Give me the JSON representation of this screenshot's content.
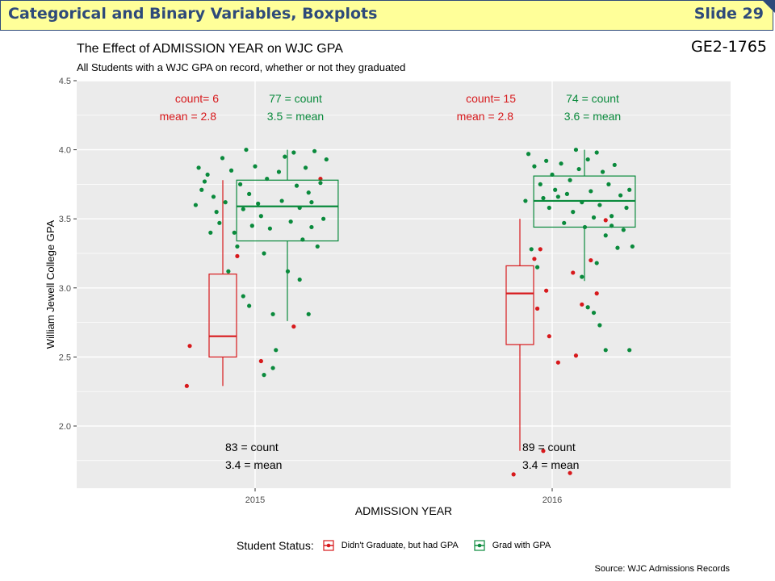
{
  "header": {
    "title": "Categorical and Binary Variables, Boxplots",
    "slide": "Slide 29"
  },
  "code": "GE2-1765",
  "source": "Source: WJC Admissions Records",
  "colors": {
    "header_bg": "#ffff99",
    "header_text": "#2e4a7a",
    "panel_bg": "#ebebeb",
    "didnt_graduate": "#d7191c",
    "grad": "#0a8a3c"
  },
  "chart_data": {
    "type": "boxplot",
    "title": "The Effect of ADMISSION YEAR on WJC GPA",
    "subtitle": "All Students with a WJC GPA on record, whether or not they graduated",
    "xlabel": "ADMISSION YEAR",
    "ylabel": "William Jewell College GPA",
    "ylim": [
      1.55,
      4.5
    ],
    "y_ticks": [
      "2.0",
      "2.5",
      "3.0",
      "3.5",
      "4.0",
      "4.5"
    ],
    "x_categories": [
      "2015",
      "2016"
    ],
    "grid": true,
    "legend": {
      "title": "Student Status:",
      "placement": "bottom",
      "entries": [
        "Didn't Graduate, but had GPA",
        "Grad with GPA"
      ]
    },
    "groups": [
      {
        "year": "2015",
        "total_annotation": [
          "83 = count",
          "3.4 = mean"
        ],
        "series": [
          {
            "name": "Didn't Graduate, but had GPA",
            "annotation": [
              "count= 6",
              "mean = 2.8"
            ],
            "box": {
              "min": 2.29,
              "q1": 2.5,
              "median": 2.65,
              "q3": 3.1,
              "max": 3.78
            },
            "points": [
              [
                -0.23,
                2.29
              ],
              [
                -0.22,
                2.58
              ],
              [
                -0.06,
                3.23
              ],
              [
                0.02,
                2.47
              ],
              [
                0.13,
                2.72
              ],
              [
                0.22,
                3.79
              ]
            ]
          },
          {
            "name": "Grad with GPA",
            "annotation": [
              "77 = count",
              "3.5 = mean"
            ],
            "box": {
              "min": 2.76,
              "q1": 3.34,
              "median": 3.59,
              "q3": 3.78,
              "max": 4.0
            },
            "points": [
              [
                -0.18,
                3.71
              ],
              [
                -0.17,
                3.77
              ],
              [
                -0.16,
                3.82
              ],
              [
                -0.14,
                3.66
              ],
              [
                -0.13,
                3.55
              ],
              [
                -0.12,
                3.47
              ],
              [
                -0.11,
                3.94
              ],
              [
                -0.1,
                3.62
              ],
              [
                -0.09,
                3.12
              ],
              [
                -0.08,
                3.85
              ],
              [
                -0.07,
                3.4
              ],
              [
                -0.06,
                3.3
              ],
              [
                -0.05,
                3.75
              ],
              [
                -0.04,
                3.57
              ],
              [
                -0.03,
                4.0
              ],
              [
                -0.02,
                3.68
              ],
              [
                -0.01,
                3.45
              ],
              [
                0.0,
                3.88
              ],
              [
                0.01,
                3.61
              ],
              [
                0.02,
                3.52
              ],
              [
                0.03,
                3.25
              ],
              [
                0.04,
                3.79
              ],
              [
                0.05,
                3.43
              ],
              [
                0.06,
                2.42
              ],
              [
                0.07,
                2.55
              ],
              [
                0.08,
                3.84
              ],
              [
                0.09,
                3.63
              ],
              [
                0.1,
                3.95
              ],
              [
                0.11,
                3.12
              ],
              [
                0.12,
                3.48
              ],
              [
                0.13,
                3.98
              ],
              [
                0.14,
                3.74
              ],
              [
                0.15,
                3.58
              ],
              [
                0.16,
                3.35
              ],
              [
                0.17,
                3.87
              ],
              [
                0.18,
                3.69
              ],
              [
                0.19,
                3.44
              ],
              [
                0.2,
                3.99
              ],
              [
                0.21,
                3.3
              ],
              [
                0.22,
                3.76
              ],
              [
                0.23,
                3.5
              ],
              [
                0.24,
                3.93
              ],
              [
                -0.2,
                3.6
              ],
              [
                -0.19,
                3.87
              ],
              [
                -0.02,
                2.87
              ],
              [
                0.03,
                2.37
              ],
              [
                0.06,
                2.81
              ],
              [
                0.15,
                3.06
              ],
              [
                0.18,
                2.81
              ],
              [
                -0.04,
                2.94
              ],
              [
                -0.15,
                3.4
              ],
              [
                0.19,
                3.62
              ]
            ]
          }
        ]
      },
      {
        "year": "2016",
        "total_annotation": [
          "89 = count",
          "3.4 = mean"
        ],
        "series": [
          {
            "name": "Didn't Graduate, but had GPA",
            "annotation": [
              "count= 15",
              "mean = 2.8"
            ],
            "box": {
              "min": 1.82,
              "q1": 2.59,
              "median": 2.96,
              "q3": 3.16,
              "max": 3.5
            },
            "points": [
              [
                -0.13,
                1.65
              ],
              [
                -0.03,
                1.82
              ],
              [
                -0.06,
                3.21
              ],
              [
                -0.05,
                2.85
              ],
              [
                -0.04,
                3.28
              ],
              [
                -0.01,
                2.65
              ],
              [
                0.02,
                2.46
              ],
              [
                0.07,
                3.11
              ],
              [
                0.08,
                2.51
              ],
              [
                0.1,
                2.88
              ],
              [
                0.13,
                3.2
              ],
              [
                0.15,
                2.96
              ],
              [
                0.18,
                3.49
              ],
              [
                0.06,
                1.66
              ],
              [
                -0.02,
                2.98
              ]
            ]
          },
          {
            "name": "Grad with GPA",
            "annotation": [
              "74 = count",
              "3.6 = mean"
            ],
            "box": {
              "min": 3.05,
              "q1": 3.44,
              "median": 3.63,
              "q3": 3.81,
              "max": 4.0
            },
            "points": [
              [
                -0.08,
                3.97
              ],
              [
                -0.06,
                3.88
              ],
              [
                -0.04,
                3.75
              ],
              [
                -0.03,
                3.65
              ],
              [
                -0.02,
                3.92
              ],
              [
                -0.01,
                3.58
              ],
              [
                0.0,
                3.82
              ],
              [
                0.01,
                3.71
              ],
              [
                0.02,
                3.66
              ],
              [
                0.03,
                3.9
              ],
              [
                0.04,
                3.47
              ],
              [
                0.05,
                3.68
              ],
              [
                0.06,
                3.78
              ],
              [
                0.07,
                3.55
              ],
              [
                0.08,
                4.0
              ],
              [
                0.09,
                3.86
              ],
              [
                0.1,
                3.62
              ],
              [
                0.11,
                3.44
              ],
              [
                0.12,
                3.93
              ],
              [
                0.13,
                3.7
              ],
              [
                0.14,
                3.51
              ],
              [
                0.15,
                3.98
              ],
              [
                0.16,
                3.6
              ],
              [
                0.17,
                3.84
              ],
              [
                0.18,
                3.38
              ],
              [
                0.19,
                3.75
              ],
              [
                0.2,
                3.52
              ],
              [
                0.21,
                3.89
              ],
              [
                0.22,
                3.29
              ],
              [
                0.23,
                3.67
              ],
              [
                0.24,
                3.42
              ],
              [
                0.25,
                3.58
              ],
              [
                0.26,
                3.71
              ],
              [
                0.27,
                3.3
              ],
              [
                -0.09,
                3.63
              ],
              [
                -0.07,
                3.28
              ],
              [
                -0.05,
                3.15
              ],
              [
                0.12,
                2.86
              ],
              [
                0.14,
                2.82
              ],
              [
                0.16,
                2.73
              ],
              [
                0.18,
                2.55
              ],
              [
                0.26,
                2.55
              ],
              [
                0.1,
                3.08
              ],
              [
                0.15,
                3.18
              ],
              [
                0.2,
                3.45
              ]
            ]
          }
        ]
      }
    ]
  }
}
